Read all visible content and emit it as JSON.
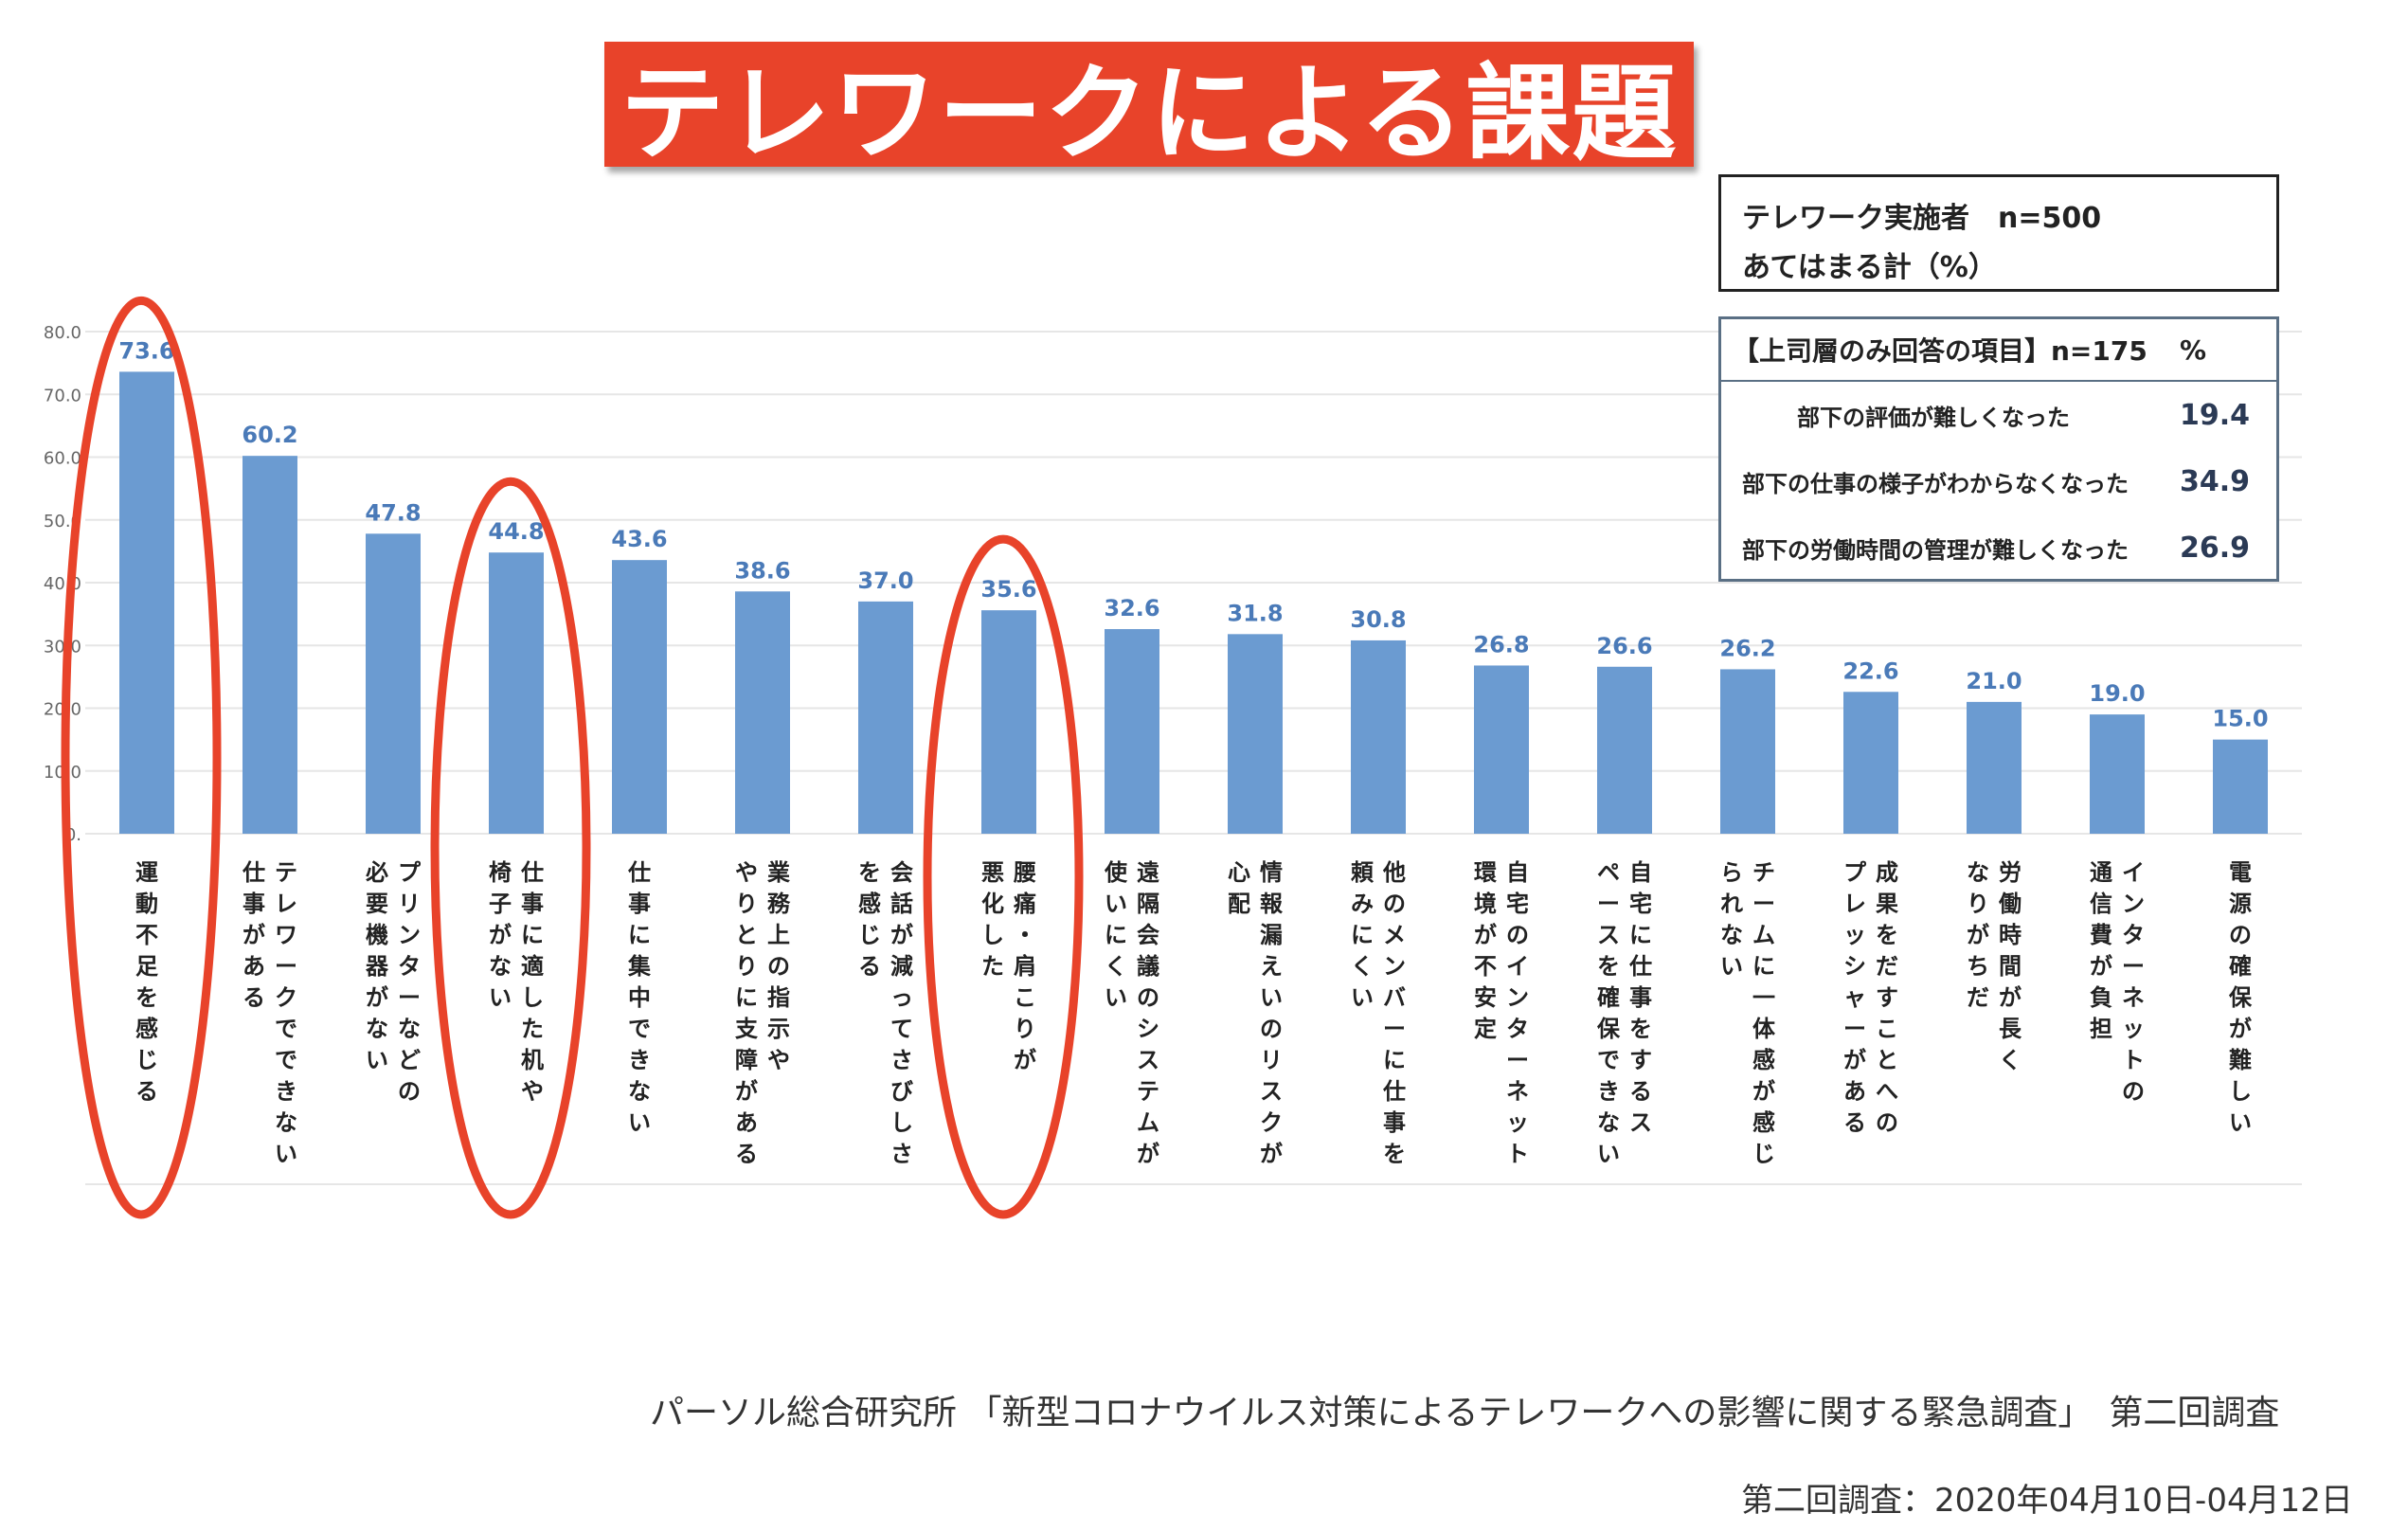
{
  "title": "テレワークによる課題",
  "info_box": {
    "line1": "テレワーク実施者　n=500",
    "line2": "あてはまる計（%）"
  },
  "manager_box": {
    "header": "【上司層のみ回答の項目】n=175",
    "header_unit": "%",
    "rows": [
      {
        "label": "部下の評価が難しくなった",
        "value": "19.4"
      },
      {
        "label": "部下の仕事の様子がわからなくなった",
        "value": "34.9"
      },
      {
        "label": "部下の労働時間の管理が難しくなった",
        "value": "26.9"
      }
    ]
  },
  "source": "パーソル総合研究所 「新型コロナウイルス対策によるテレワークへの影響に関する緊急調査」　第二回調査",
  "date": "第二回調査：2020年04月10日-04月12日",
  "colors": {
    "bar": "#6b9bd1",
    "label": "#4a7ab8",
    "circle": "#e8432a",
    "grid": "#e6e6e6"
  },
  "chart_data": {
    "type": "bar",
    "ylim": [
      0,
      80
    ],
    "yticks": [
      "0.",
      "10.0",
      "20.0",
      "30.0",
      "40.0",
      "50.0",
      "60.0",
      "70.0",
      "80.0"
    ],
    "grid": true,
    "categories": [
      [
        "運動不足を感じる"
      ],
      [
        "テレワークでできない",
        "仕事がある"
      ],
      [
        "プリンターなどの",
        "必要機器がない"
      ],
      [
        "仕事に適した机や",
        "椅子がない"
      ],
      [
        "仕事に集中できない"
      ],
      [
        "業務上の指示や",
        "やりとりに支障がある"
      ],
      [
        "会話が減ってさびしさ",
        "を感じる"
      ],
      [
        "腰痛・肩こりが",
        "悪化した"
      ],
      [
        "遠隔会議のシステムが",
        "使いにくい"
      ],
      [
        "情報漏えいのリスクが",
        "心配"
      ],
      [
        "他のメンバーに仕事を",
        "頼みにくい"
      ],
      [
        "自宅のインターネット",
        "環境が不安定"
      ],
      [
        "自宅に仕事をするス",
        "ペースを確保できない"
      ],
      [
        "チームに一体感が感じ",
        "られない"
      ],
      [
        "成果をだすことへの",
        "プレッシャーがある"
      ],
      [
        "労働時間が長く",
        "なりがちだ"
      ],
      [
        "インターネットの",
        "通信費が負担"
      ],
      [
        "電源の確保が難しい"
      ]
    ],
    "values": [
      73.6,
      60.2,
      47.8,
      44.8,
      43.6,
      38.6,
      37.0,
      35.6,
      32.6,
      31.8,
      30.8,
      26.8,
      26.6,
      26.2,
      22.6,
      21.0,
      19.0,
      15.0
    ],
    "value_labels": [
      "73.6",
      "60.2",
      "47.8",
      "44.8",
      "43.6",
      "38.6",
      "37.0",
      "35.6",
      "32.6",
      "31.8",
      "30.8",
      "26.8",
      "26.6",
      "26.2",
      "22.6",
      "21.0",
      "19.0",
      "15.0"
    ],
    "highlighted": [
      0,
      3,
      7
    ]
  }
}
